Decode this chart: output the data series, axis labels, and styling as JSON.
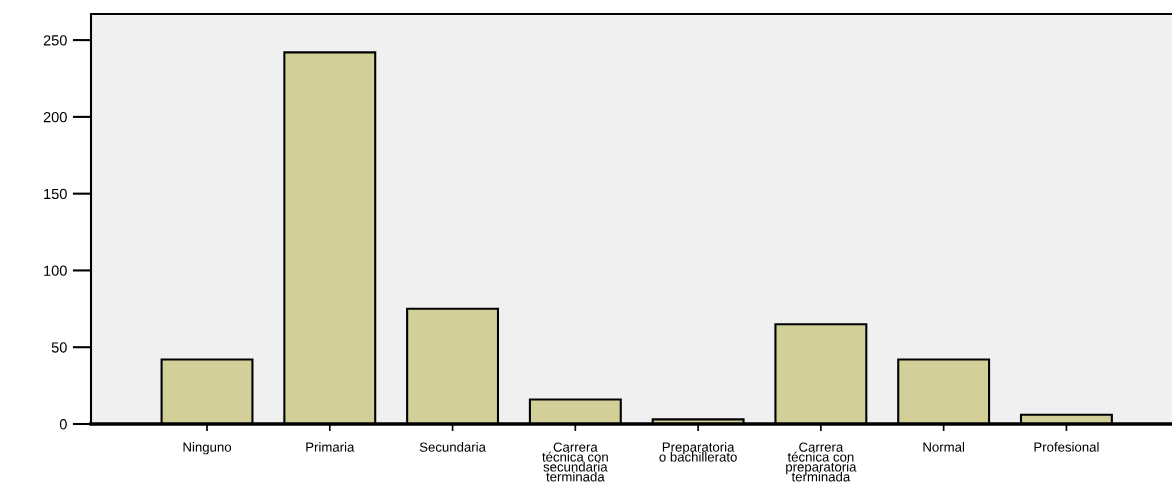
{
  "chart_data": {
    "type": "bar",
    "categories": [
      "Ninguno",
      "Primaria",
      "Secundaria",
      "Carrera\ntécnica con\nsecundaria\nterminada",
      "Preparatoria\no bachillerato",
      "Carrera\ntécnica con\npreparatoria\nterminada",
      "Normal",
      "Profesional"
    ],
    "values": [
      42,
      242,
      75,
      16,
      3,
      65,
      42,
      6
    ],
    "color": "#d3cf98",
    "ylim": [
      0,
      267
    ],
    "yticks": [
      0,
      50,
      100,
      150,
      200,
      250
    ],
    "grid": false
  }
}
